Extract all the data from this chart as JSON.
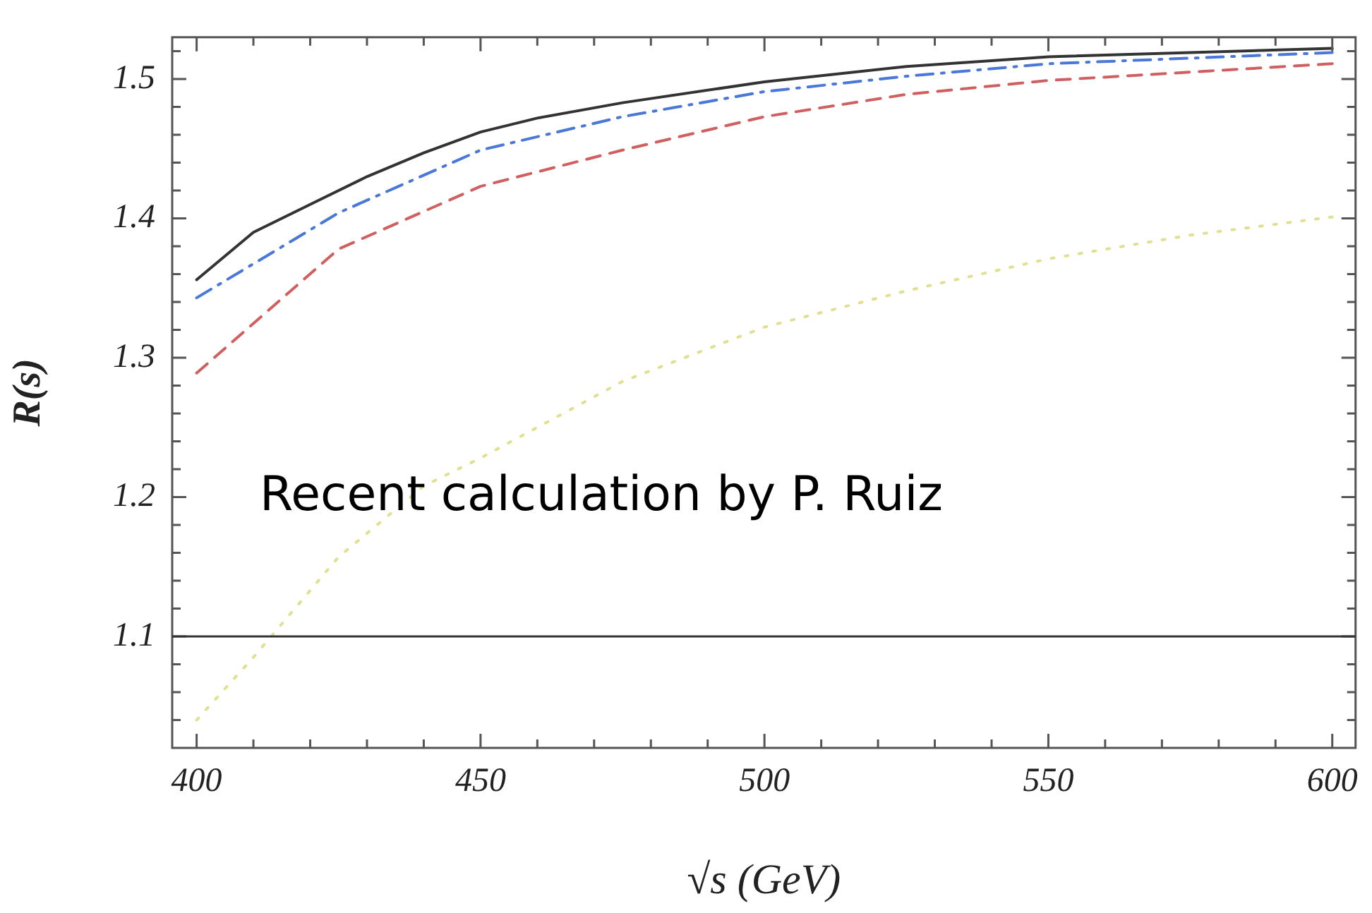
{
  "chart_data": {
    "type": "line",
    "xlabel": "√s (GeV)",
    "ylabel": "R(s)",
    "xlim": [
      395.7,
      604.1
    ],
    "ylim": [
      1.02,
      1.53
    ],
    "xticks": [
      400,
      {
        "value": 410,
        "label": null
      },
      {
        "value": 420,
        "label": null
      },
      {
        "value": 430,
        "label": null
      },
      {
        "value": 440,
        "label": null
      },
      450,
      {
        "value": 460,
        "label": null
      },
      {
        "value": 470,
        "label": null
      },
      {
        "value": 480,
        "label": null
      },
      {
        "value": 490,
        "label": null
      },
      500,
      {
        "value": 510,
        "label": null
      },
      {
        "value": 520,
        "label": null
      },
      {
        "value": 530,
        "label": null
      },
      {
        "value": 540,
        "label": null
      },
      550,
      {
        "value": 560,
        "label": null
      },
      {
        "value": 570,
        "label": null
      },
      {
        "value": 580,
        "label": null
      },
      {
        "value": 590,
        "label": null
      },
      600
    ],
    "yticks": [
      {
        "value": 1.04,
        "label": null
      },
      {
        "value": 1.06,
        "label": null
      },
      {
        "value": 1.08,
        "label": null
      },
      1.1,
      {
        "value": 1.12,
        "label": null
      },
      {
        "value": 1.14,
        "label": null
      },
      {
        "value": 1.16,
        "label": null
      },
      {
        "value": 1.18,
        "label": null
      },
      1.2,
      {
        "value": 1.22,
        "label": null
      },
      {
        "value": 1.24,
        "label": null
      },
      {
        "value": 1.26,
        "label": null
      },
      {
        "value": 1.28,
        "label": null
      },
      1.3,
      {
        "value": 1.32,
        "label": null
      },
      {
        "value": 1.34,
        "label": null
      },
      {
        "value": 1.36,
        "label": null
      },
      {
        "value": 1.38,
        "label": null
      },
      1.4,
      {
        "value": 1.42,
        "label": null
      },
      {
        "value": 1.44,
        "label": null
      },
      {
        "value": 1.46,
        "label": null
      },
      {
        "value": 1.48,
        "label": null
      },
      1.5,
      {
        "value": 1.52,
        "label": null
      }
    ],
    "grid": false,
    "legend": false,
    "marker": "none",
    "series": [
      {
        "color": "#333333",
        "line_style": "solid",
        "x": [
          400,
          410,
          420,
          430,
          440,
          450,
          460,
          475,
          500,
          525,
          550,
          575,
          600
        ],
        "values": [
          1.356,
          1.39,
          1.41,
          1.43,
          1.447,
          1.462,
          1.472,
          1.483,
          1.498,
          1.509,
          1.516,
          1.519,
          1.522
        ]
      },
      {
        "color": "#4a78d8",
        "line_style": "dashdot",
        "x": [
          400,
          425,
          450,
          475,
          500,
          525,
          550,
          575,
          600
        ],
        "values": [
          1.343,
          1.404,
          1.449,
          1.473,
          1.491,
          1.502,
          1.511,
          1.515,
          1.519
        ]
      },
      {
        "color": "#d06060",
        "line_style": "dashed",
        "x": [
          400,
          425,
          450,
          475,
          500,
          525,
          550,
          575,
          600
        ],
        "values": [
          1.289,
          1.378,
          1.423,
          1.449,
          1.473,
          1.489,
          1.499,
          1.505,
          1.511
        ]
      },
      {
        "color": "#e0e090",
        "line_style": "dotted",
        "x": [
          400,
          410,
          415,
          425,
          440,
          450,
          475,
          500,
          525,
          550,
          575,
          600
        ],
        "values": [
          1.04,
          1.085,
          1.109,
          1.157,
          1.208,
          1.228,
          1.283,
          1.322,
          1.348,
          1.371,
          1.388,
          1.401
        ]
      }
    ],
    "ref_lines": [
      {
        "axis": "y",
        "value": 1.1,
        "color": "#333333"
      }
    ],
    "annotations": [
      "Recent calculation by P. Ruiz"
    ]
  }
}
